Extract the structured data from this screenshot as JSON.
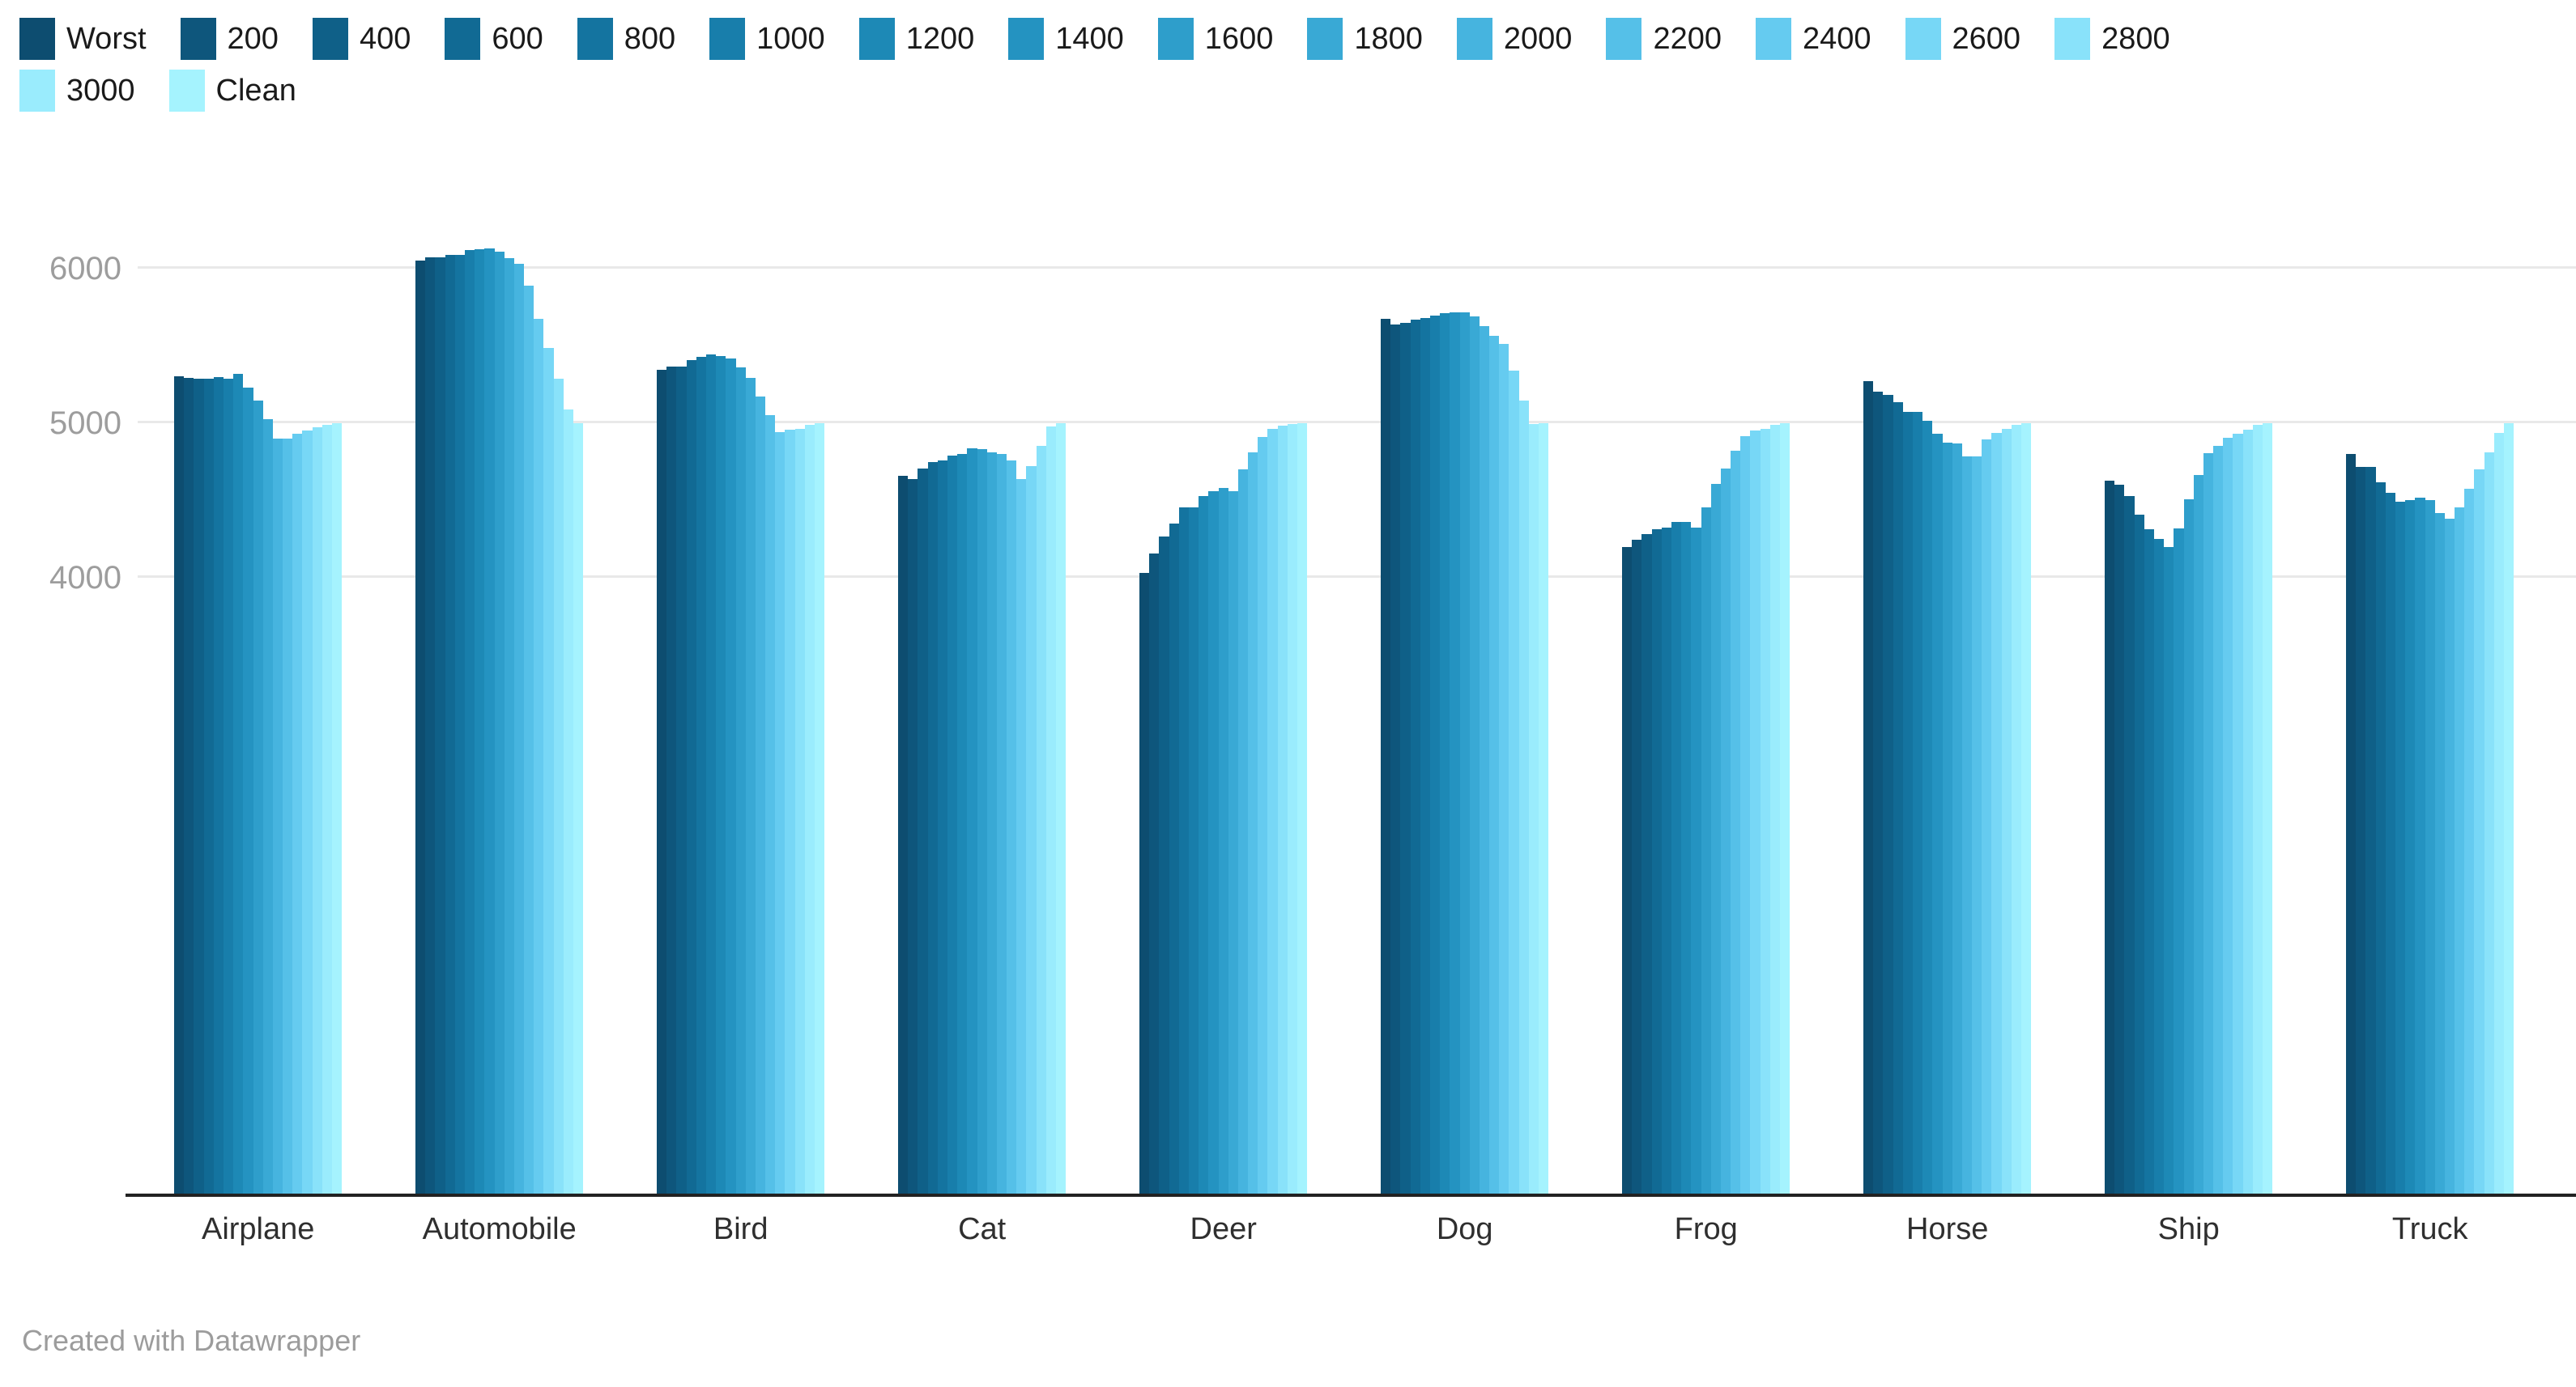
{
  "footer": {
    "credit": "Created with Datawrapper"
  },
  "chart_data": {
    "type": "bar",
    "title": "",
    "xlabel": "",
    "ylabel": "",
    "categories": [
      "Airplane",
      "Automobile",
      "Bird",
      "Cat",
      "Deer",
      "Dog",
      "Frog",
      "Horse",
      "Ship",
      "Truck"
    ],
    "y_ticks": [
      4000,
      5000,
      6000
    ],
    "ylim": [
      0,
      6270
    ],
    "grid": true,
    "legend_position": "top",
    "legend_wrap_after": 15,
    "series": [
      {
        "name": "Worst",
        "color": "#0d4d70",
        "values": [
          5305,
          6050,
          5345,
          4660,
          4030,
          5675,
          4195,
          5270,
          4625,
          4800
        ]
      },
      {
        "name": "200",
        "color": "#0e567c",
        "values": [
          5295,
          6075,
          5365,
          4640,
          4155,
          5640,
          4245,
          5205,
          4600,
          4715
        ]
      },
      {
        "name": "400",
        "color": "#0f6088",
        "values": [
          5285,
          6075,
          5365,
          4705,
          4265,
          5650,
          4280,
          5185,
          4525,
          4715
        ]
      },
      {
        "name": "600",
        "color": "#116a94",
        "values": [
          5290,
          6090,
          5410,
          4750,
          4350,
          5670,
          4315,
          5135,
          4405,
          4615
        ]
      },
      {
        "name": "800",
        "color": "#1474a0",
        "values": [
          5300,
          6090,
          5430,
          4760,
          4455,
          5680,
          4325,
          5075,
          4315,
          4550
        ]
      },
      {
        "name": "1000",
        "color": "#187eab",
        "values": [
          5290,
          6120,
          5445,
          4790,
          4455,
          5695,
          4360,
          5075,
          4250,
          4490
        ]
      },
      {
        "name": "1200",
        "color": "#1d89b6",
        "values": [
          5320,
          6125,
          5435,
          4800,
          4530,
          5710,
          4360,
          5015,
          4200,
          4500
        ]
      },
      {
        "name": "1400",
        "color": "#2493c1",
        "values": [
          5230,
          6130,
          5420,
          4835,
          4560,
          5715,
          4325,
          4930,
          4320,
          4515
        ]
      },
      {
        "name": "1600",
        "color": "#2e9ecb",
        "values": [
          5145,
          6110,
          5360,
          4830,
          4580,
          5715,
          4455,
          4875,
          4505,
          4500
        ]
      },
      {
        "name": "1800",
        "color": "#39a9d5",
        "values": [
          5025,
          6070,
          5295,
          4810,
          4560,
          5690,
          4605,
          4870,
          4665,
          4420
        ]
      },
      {
        "name": "2000",
        "color": "#46b4df",
        "values": [
          4900,
          6030,
          5170,
          4800,
          4700,
          5630,
          4705,
          4785,
          4805,
          4380
        ]
      },
      {
        "name": "2200",
        "color": "#55c0e8",
        "values": [
          4900,
          5890,
          5050,
          4760,
          4810,
          5565,
          4820,
          4785,
          4855,
          4455
        ]
      },
      {
        "name": "2400",
        "color": "#65cbf0",
        "values": [
          4930,
          5675,
          4940,
          4640,
          4910,
          5515,
          4915,
          4895,
          4905,
          4575
        ]
      },
      {
        "name": "2600",
        "color": "#77d7f6",
        "values": [
          4950,
          5485,
          4955,
          4720,
          4960,
          5340,
          4950,
          4935,
          4930,
          4700
        ]
      },
      {
        "name": "2800",
        "color": "#89e2fa",
        "values": [
          4975,
          5290,
          4965,
          4850,
          4985,
          5145,
          4965,
          4965,
          4955,
          4810
        ]
      },
      {
        "name": "3000",
        "color": "#9aecfd",
        "values": [
          4990,
          5090,
          4990,
          4980,
          4995,
          4995,
          4990,
          4990,
          4990,
          4935
        ]
      },
      {
        "name": "Clean",
        "color": "#a5f3fe",
        "values": [
          5000,
          5000,
          5000,
          5000,
          5000,
          5000,
          5000,
          5000,
          5000,
          5000
        ]
      }
    ]
  }
}
